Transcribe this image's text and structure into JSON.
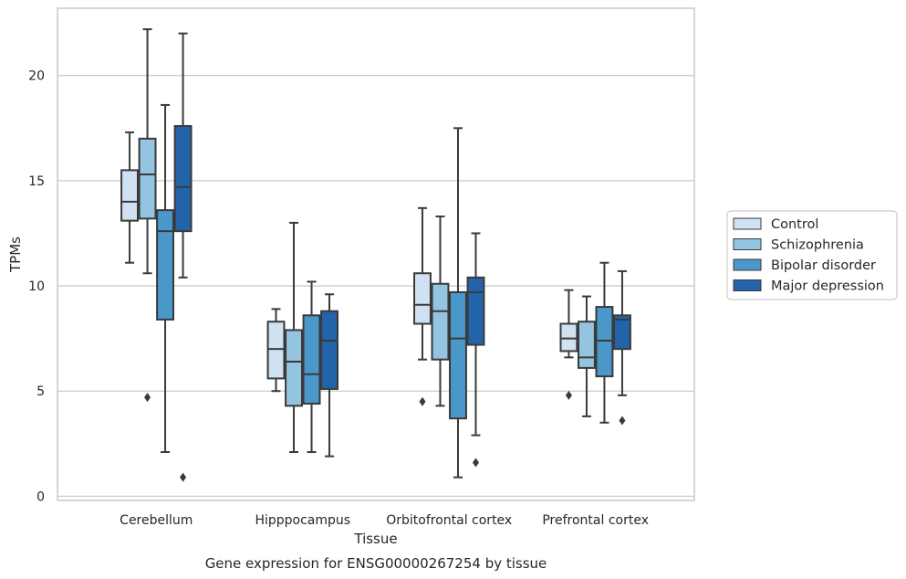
{
  "chart_data": {
    "type": "boxplot",
    "caption": "Gene expression for ENSG00000267254 by tissue",
    "xlabel": "Tissue",
    "ylabel": "TPMs",
    "ylim": [
      -0.2,
      23.2
    ],
    "yticks": [
      0,
      5,
      10,
      15,
      20
    ],
    "grid": "horizontal",
    "legend_position": "right",
    "categories": [
      "Cerebellum",
      "Hipppocampus",
      "Orbitofrontal cortex",
      "Prefrontal cortex"
    ],
    "series": [
      {
        "name": "Control",
        "color": "#d0e1f2",
        "boxes": [
          {
            "whislo": 11.1,
            "q1": 13.1,
            "med": 14.0,
            "q3": 15.5,
            "whishi": 17.3,
            "fliers": []
          },
          {
            "whislo": 5.0,
            "q1": 5.6,
            "med": 7.0,
            "q3": 8.3,
            "whishi": 8.9,
            "fliers": []
          },
          {
            "whislo": 6.5,
            "q1": 8.2,
            "med": 9.1,
            "q3": 10.6,
            "whishi": 13.7,
            "fliers": [
              4.5
            ]
          },
          {
            "whislo": 6.6,
            "q1": 6.9,
            "med": 7.5,
            "q3": 8.2,
            "whishi": 9.8,
            "fliers": [
              4.8
            ]
          }
        ]
      },
      {
        "name": "Schizophrenia",
        "color": "#94c4df",
        "boxes": [
          {
            "whislo": 10.6,
            "q1": 13.2,
            "med": 15.3,
            "q3": 17.0,
            "whishi": 22.2,
            "fliers": [
              4.7
            ]
          },
          {
            "whislo": 2.1,
            "q1": 4.3,
            "med": 6.4,
            "q3": 7.9,
            "whishi": 13.0,
            "fliers": []
          },
          {
            "whislo": 4.3,
            "q1": 6.5,
            "med": 8.8,
            "q3": 10.1,
            "whishi": 13.3,
            "fliers": []
          },
          {
            "whislo": 3.8,
            "q1": 6.1,
            "med": 6.6,
            "q3": 8.3,
            "whishi": 9.5,
            "fliers": []
          }
        ]
      },
      {
        "name": "Bipolar disorder",
        "color": "#4a98c9",
        "boxes": [
          {
            "whislo": 2.1,
            "q1": 8.4,
            "med": 12.6,
            "q3": 13.6,
            "whishi": 18.6,
            "fliers": []
          },
          {
            "whislo": 2.1,
            "q1": 4.4,
            "med": 5.8,
            "q3": 8.6,
            "whishi": 10.2,
            "fliers": []
          },
          {
            "whislo": 0.9,
            "q1": 3.7,
            "med": 7.5,
            "q3": 9.7,
            "whishi": 17.5,
            "fliers": []
          },
          {
            "whislo": 3.5,
            "q1": 5.7,
            "med": 7.4,
            "q3": 9.0,
            "whishi": 11.1,
            "fliers": []
          }
        ]
      },
      {
        "name": "Major depression",
        "color": "#2264aa",
        "boxes": [
          {
            "whislo": 10.4,
            "q1": 12.6,
            "med": 14.7,
            "q3": 17.6,
            "whishi": 22.0,
            "fliers": [
              0.9
            ]
          },
          {
            "whislo": 1.9,
            "q1": 5.1,
            "med": 7.4,
            "q3": 8.8,
            "whishi": 9.6,
            "fliers": []
          },
          {
            "whislo": 2.9,
            "q1": 7.2,
            "med": 9.7,
            "q3": 10.4,
            "whishi": 12.5,
            "fliers": [
              1.6
            ]
          },
          {
            "whislo": 4.8,
            "q1": 7.0,
            "med": 8.4,
            "q3": 8.6,
            "whishi": 10.7,
            "fliers": [
              3.6
            ]
          }
        ]
      }
    ]
  }
}
